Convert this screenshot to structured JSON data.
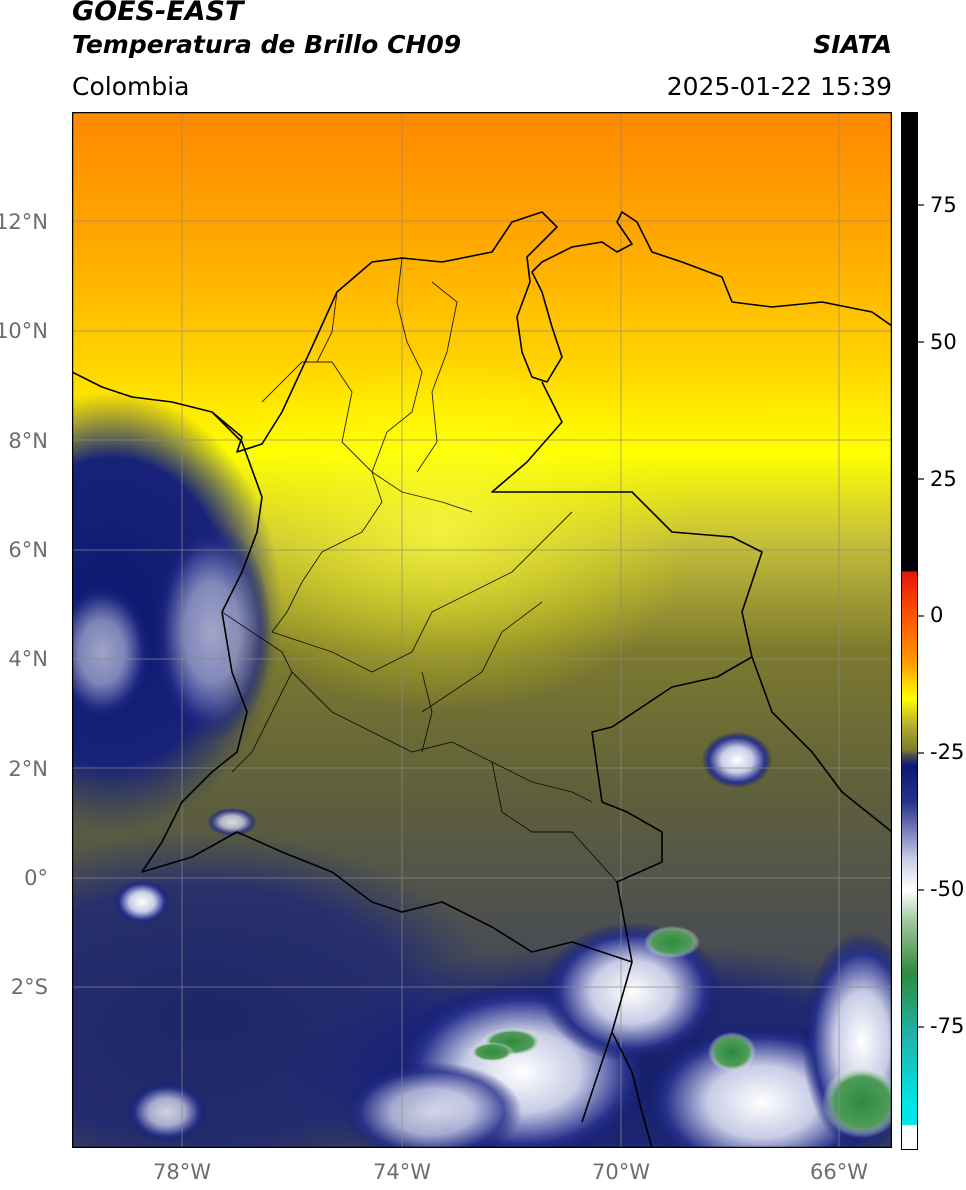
{
  "header": {
    "satellite": "GOES-EAST",
    "product": "Temperatura de Brillo CH09",
    "agency": "SIATA",
    "region": "Colombia",
    "datetime": "2025-01-22 15:39"
  },
  "map": {
    "lon_range": [
      -80,
      -65
    ],
    "lat_range": [
      -5.1,
      14
    ],
    "lat_ticks": [
      "12°N",
      "10°N",
      "8°N",
      "6°N",
      "4°N",
      "2°N",
      "0°",
      "2°S"
    ],
    "lon_ticks": [
      "78°W",
      "74°W",
      "70°W",
      "66°W"
    ],
    "grid": true
  },
  "colorbar": {
    "ticks": [
      "75",
      "50",
      "25",
      "0",
      "-25",
      "-50",
      "-75"
    ],
    "colors": {
      "black": "#000000",
      "red": "#e8140c",
      "orange": "#ff8c00",
      "yellow": "#ffff00",
      "olive": "#7d7a2e",
      "gray": "#4a4d52",
      "navy": "#0c1870",
      "white": "#ffffff",
      "green": "#2e8b3c",
      "teal": "#20b2aa",
      "cyan": "#00e5e5"
    }
  }
}
